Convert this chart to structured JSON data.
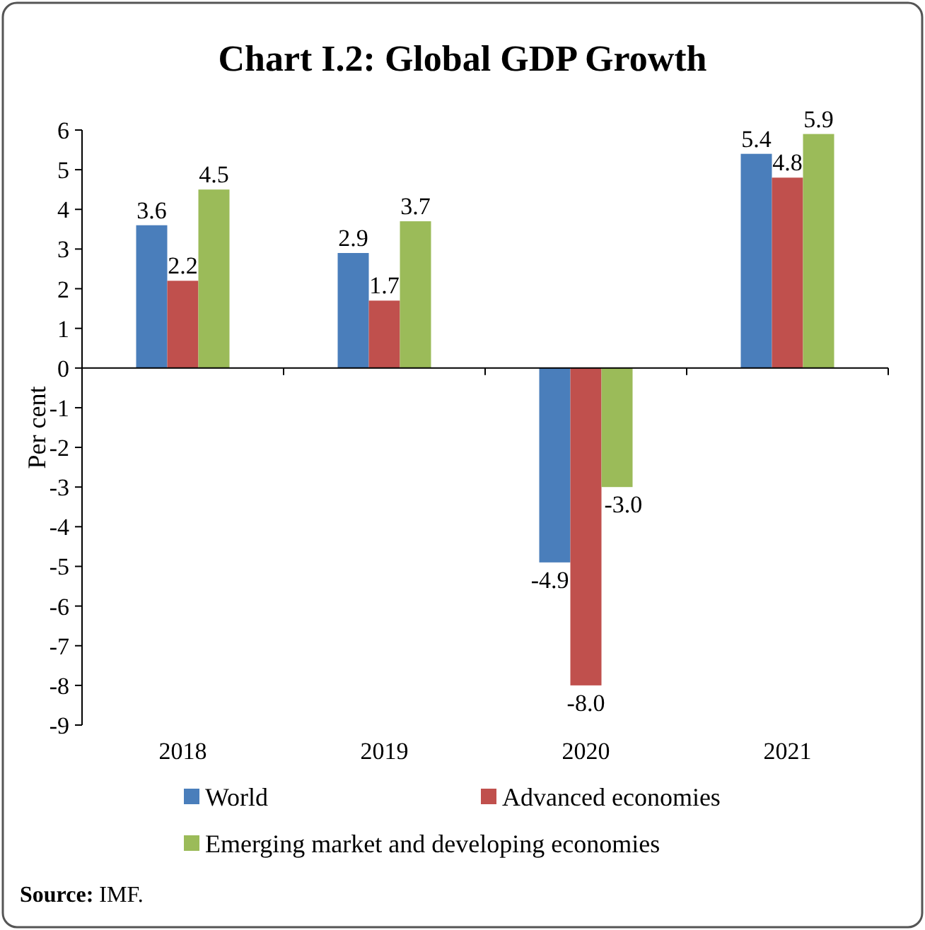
{
  "chart_data": {
    "type": "bar",
    "title": "Chart I.2: Global GDP Growth",
    "ylabel": "Per cent",
    "categories": [
      "2018",
      "2019",
      "2020",
      "2021"
    ],
    "series": [
      {
        "name": "World",
        "color": "#4a7ebb",
        "values": [
          3.6,
          2.9,
          -4.9,
          5.4
        ],
        "value_labels": [
          "3.6",
          "2.9",
          "-4.9",
          "5.4"
        ]
      },
      {
        "name": "Advanced economies",
        "color": "#c0504d",
        "values": [
          2.2,
          1.7,
          -8.0,
          4.8
        ],
        "value_labels": [
          "2.2",
          "1.7",
          "-8.0",
          "4.8"
        ]
      },
      {
        "name": "Emerging market and developing economies",
        "color": "#9bbb59",
        "values": [
          4.5,
          3.7,
          -3.0,
          5.9
        ],
        "value_labels": [
          "4.5",
          "3.7",
          "-3.0",
          "5.9"
        ]
      }
    ],
    "ylim": [
      -9,
      6
    ],
    "yticks": [
      -9,
      -8,
      -7,
      -6,
      -5,
      -4,
      -3,
      -2,
      -1,
      0,
      1,
      2,
      3,
      4,
      5,
      6
    ],
    "legend": "bottom",
    "annotations": [
      "Source: IMF."
    ]
  }
}
